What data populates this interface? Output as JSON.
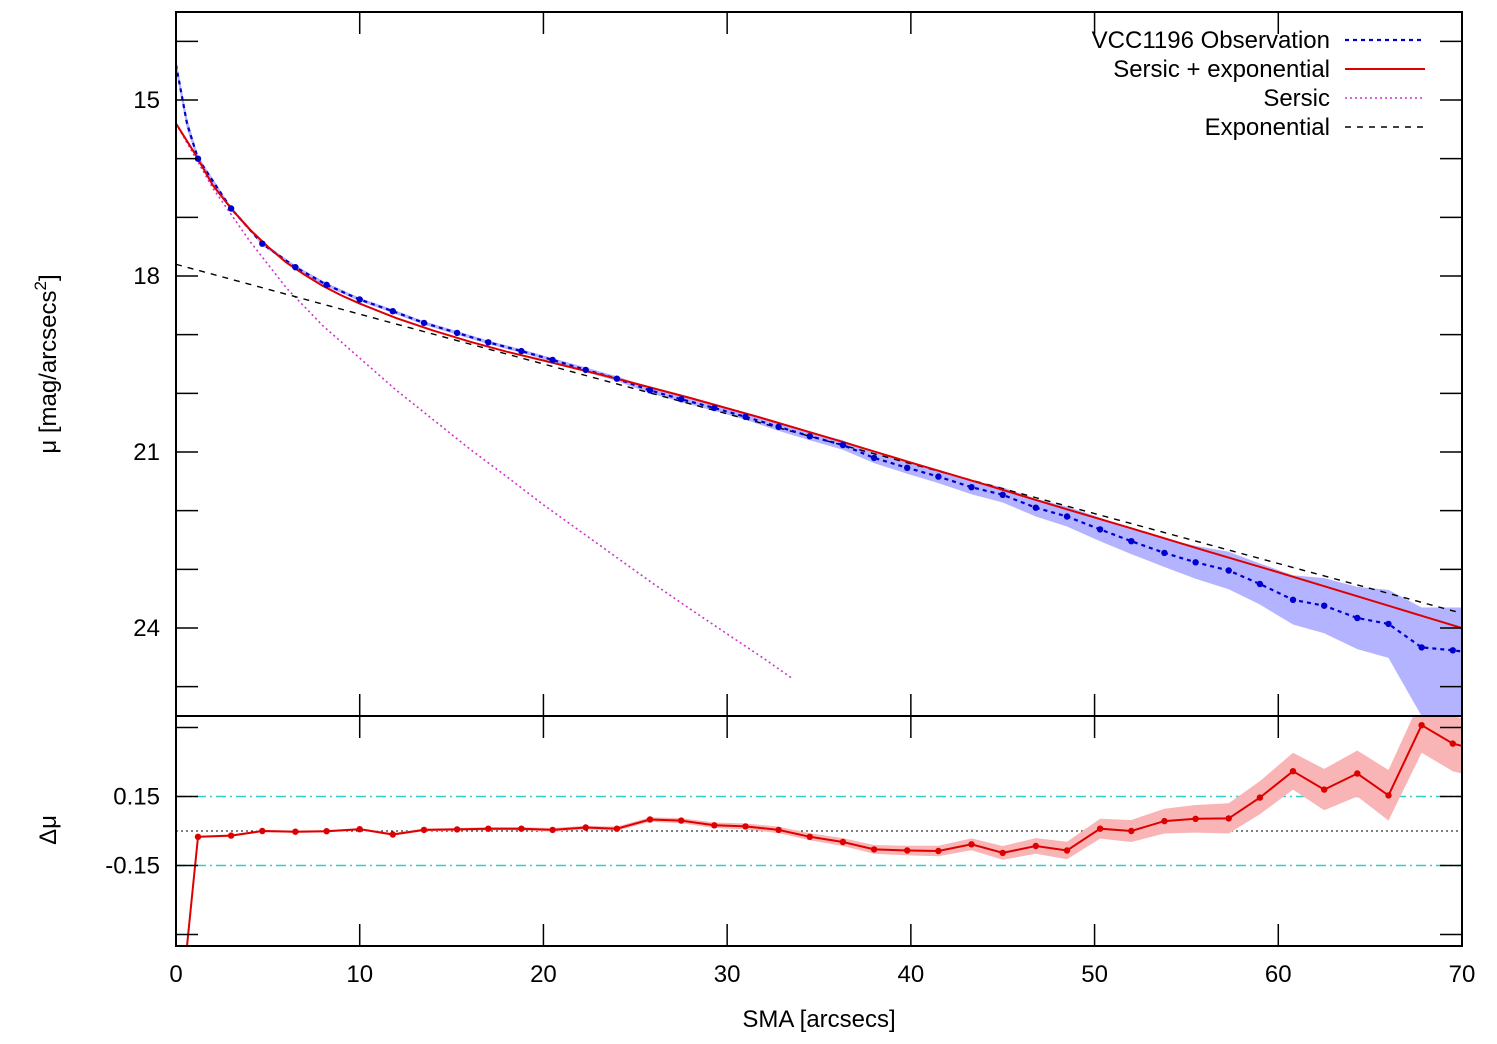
{
  "chart_data": [
    {
      "panel": "profile",
      "type": "line",
      "xlim": [
        0,
        70
      ],
      "ylim": [
        25.5,
        13.5
      ],
      "y_inverted": true,
      "ylabel_main": "μ [mag/arcsecs",
      "ylabel_sup": "2",
      "ylabel_end": "]",
      "x_ticks": [
        0,
        10,
        20,
        30,
        40,
        50,
        60,
        70
      ],
      "y_ticks": [
        15,
        18,
        21,
        24
      ],
      "y_minor": [
        14,
        16,
        17,
        19,
        20,
        22,
        23,
        25
      ],
      "legend_position": "top-right",
      "colors": {
        "observation": "#0000cc",
        "band": "#b3b3ff",
        "model": "#dd0000",
        "sersic": "#cc33cc",
        "exponential": "#000000"
      },
      "series": [
        {
          "name": "VCC1196 Observation",
          "style": "blue dotted with points and shaded error band",
          "x": [
            0.0,
            0.3,
            0.6,
            1.2,
            3.0,
            4.7,
            6.5,
            8.2,
            10.0,
            11.8,
            13.5,
            15.3,
            17.0,
            18.8,
            20.5,
            22.3,
            24.0,
            25.8,
            27.5,
            29.3,
            31.0,
            32.8,
            34.5,
            36.3,
            38.0,
            39.8,
            41.5,
            43.3,
            45.0,
            46.8,
            48.5,
            50.3,
            52.0,
            53.8,
            55.5,
            57.3,
            59.0,
            60.8,
            62.5,
            64.3,
            66.0,
            67.8,
            69.5,
            70.0
          ],
          "y": [
            14.4,
            14.9,
            15.4,
            16.0,
            16.85,
            17.45,
            17.85,
            18.15,
            18.4,
            18.6,
            18.8,
            18.97,
            19.13,
            19.28,
            19.43,
            19.6,
            19.75,
            19.95,
            20.1,
            20.25,
            20.4,
            20.57,
            20.73,
            20.88,
            21.1,
            21.27,
            21.42,
            21.6,
            21.73,
            21.95,
            22.1,
            22.32,
            22.52,
            22.72,
            22.88,
            23.02,
            23.25,
            23.52,
            23.62,
            23.83,
            23.93,
            24.33,
            24.38,
            24.4
          ],
          "err_lo": [
            14.3,
            14.8,
            15.3,
            15.95,
            16.82,
            17.42,
            17.82,
            18.12,
            18.37,
            18.57,
            18.77,
            18.94,
            19.1,
            19.25,
            19.4,
            19.56,
            19.71,
            19.9,
            20.05,
            20.2,
            20.35,
            20.5,
            20.66,
            20.8,
            21.01,
            21.17,
            21.31,
            21.48,
            21.6,
            21.8,
            21.93,
            22.12,
            22.3,
            22.48,
            22.6,
            22.7,
            22.9,
            23.1,
            23.15,
            23.3,
            23.35,
            23.65,
            23.65,
            23.65
          ],
          "err_hi": [
            14.5,
            15.0,
            15.5,
            16.05,
            16.88,
            17.48,
            17.88,
            18.18,
            18.43,
            18.63,
            18.83,
            19.0,
            19.16,
            19.31,
            19.46,
            19.64,
            19.79,
            20.0,
            20.15,
            20.3,
            20.45,
            20.64,
            20.8,
            20.96,
            21.19,
            21.37,
            21.53,
            21.72,
            21.86,
            22.1,
            22.27,
            22.52,
            22.74,
            22.96,
            23.16,
            23.34,
            23.6,
            23.94,
            24.09,
            24.36,
            24.51,
            25.5,
            25.5,
            25.5
          ]
        },
        {
          "name": "Sersic + exponential",
          "style": "red solid",
          "x": [
            0,
            1,
            2,
            3,
            4,
            5,
            6,
            7,
            8,
            9,
            10,
            12,
            14,
            16,
            18,
            20,
            24,
            28,
            32,
            36,
            40,
            44,
            48,
            52,
            56,
            60,
            64,
            68,
            70
          ],
          "y": [
            15.4,
            15.9,
            16.45,
            16.85,
            17.2,
            17.5,
            17.77,
            17.98,
            18.17,
            18.33,
            18.47,
            18.72,
            18.93,
            19.12,
            19.29,
            19.44,
            19.75,
            20.08,
            20.43,
            20.8,
            21.18,
            21.55,
            21.93,
            22.3,
            22.68,
            23.05,
            23.43,
            23.81,
            24.0
          ]
        },
        {
          "name": "Sersic",
          "style": "magenta dotted",
          "x": [
            0,
            1,
            2,
            3,
            4,
            5,
            6,
            8,
            10,
            12,
            14,
            16,
            18,
            20,
            22,
            24,
            26,
            28,
            30,
            32,
            33.5
          ],
          "y": [
            15.4,
            15.95,
            16.5,
            16.95,
            17.4,
            17.8,
            18.2,
            18.85,
            19.4,
            19.95,
            20.45,
            20.95,
            21.42,
            21.9,
            22.35,
            22.8,
            23.25,
            23.68,
            24.1,
            24.52,
            24.85
          ]
        },
        {
          "name": "Exponential",
          "style": "black dashed",
          "x": [
            0,
            20,
            40,
            60,
            70
          ],
          "y": [
            17.8,
            19.5,
            21.2,
            22.9,
            23.75
          ]
        }
      ]
    },
    {
      "panel": "residuals",
      "type": "line",
      "xlabel": "SMA [arcsecs]",
      "ylabel": "Δμ",
      "xlim": [
        0,
        70
      ],
      "ylim": [
        -0.5,
        0.5
      ],
      "y_ticks": [
        0.15,
        -0.15
      ],
      "y_tick_labels": [
        "0.15",
        "-0.15"
      ],
      "y_minor": [
        0.45,
        -0.45
      ],
      "reference_lines": [
        {
          "y": 0.15,
          "style": "cyan dash-dot"
        },
        {
          "y": -0.15,
          "style": "cyan dash-dot"
        },
        {
          "y": 0.0,
          "style": "black dotted"
        }
      ],
      "colors": {
        "residual": "#dd0000",
        "band": "#f9b5b5",
        "reference": "#33cccc"
      },
      "series": [
        {
          "name": "residual",
          "x": [
            0.6,
            1.2,
            3.0,
            4.7,
            6.5,
            8.2,
            10.0,
            11.8,
            13.5,
            15.3,
            17.0,
            18.8,
            20.5,
            22.3,
            24.0,
            25.8,
            27.5,
            29.3,
            31.0,
            32.8,
            34.5,
            36.3,
            38.0,
            39.8,
            41.5,
            43.3,
            45.0,
            46.8,
            48.5,
            50.3,
            52.0,
            53.8,
            55.5,
            57.3,
            59.0,
            60.8,
            62.5,
            64.3,
            66.0,
            67.8,
            69.5,
            70.0
          ],
          "y": [
            -0.5,
            -0.025,
            -0.02,
            0.0,
            -0.003,
            -0.001,
            0.008,
            -0.015,
            0.005,
            0.007,
            0.01,
            0.01,
            0.005,
            0.015,
            0.01,
            0.05,
            0.045,
            0.025,
            0.02,
            0.005,
            -0.025,
            -0.048,
            -0.08,
            -0.085,
            -0.087,
            -0.058,
            -0.095,
            -0.065,
            -0.085,
            0.01,
            0.0,
            0.043,
            0.053,
            0.055,
            0.145,
            0.26,
            0.18,
            0.25,
            0.155,
            0.46,
            0.38,
            0.37
          ],
          "err": [
            0.005,
            0.005,
            0.005,
            0.005,
            0.005,
            0.005,
            0.005,
            0.006,
            0.006,
            0.006,
            0.007,
            0.007,
            0.008,
            0.008,
            0.009,
            0.01,
            0.011,
            0.012,
            0.013,
            0.014,
            0.015,
            0.017,
            0.019,
            0.021,
            0.023,
            0.026,
            0.03,
            0.034,
            0.038,
            0.043,
            0.048,
            0.054,
            0.06,
            0.066,
            0.072,
            0.08,
            0.09,
            0.1,
            0.11,
            0.12,
            0.12,
            0.12
          ]
        }
      ]
    }
  ]
}
